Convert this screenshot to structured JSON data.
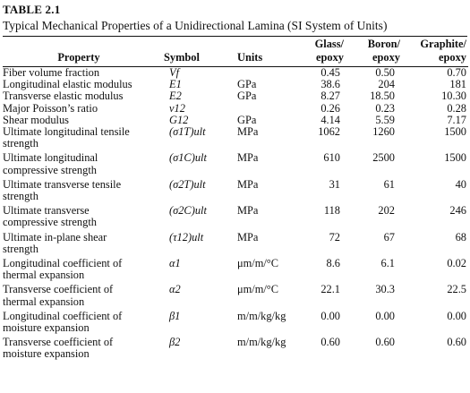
{
  "table": {
    "label": "TABLE 2.1",
    "caption": "Typical Mechanical Properties of a Unidirectional Lamina (SI System of Units)",
    "headers": {
      "property": "Property",
      "symbol": "Symbol",
      "units": "Units",
      "glass": "Glass/\nepoxy",
      "boron": "Boron/\nepoxy",
      "graphite": "Graphite/\nepoxy"
    },
    "rows": [
      {
        "property": "Fiber volume fraction",
        "symbol": "Vf",
        "units": "",
        "glass": "0.45",
        "boron": "0.50",
        "graphite": "0.70"
      },
      {
        "property": "Longitudinal elastic modulus",
        "symbol": "E1",
        "units": "GPa",
        "glass": "38.6",
        "boron": "204",
        "graphite": "181"
      },
      {
        "property": "Transverse elastic modulus",
        "symbol": "E2",
        "units": "GPa",
        "glass": "8.27",
        "boron": "18.50",
        "graphite": "10.30"
      },
      {
        "property": "Major Poisson’s ratio",
        "symbol": "ν12",
        "units": "",
        "glass": "0.26",
        "boron": "0.23",
        "graphite": "0.28"
      },
      {
        "property": "Shear modulus",
        "symbol": "G12",
        "units": "GPa",
        "glass": "4.14",
        "boron": "5.59",
        "graphite": "7.17"
      },
      {
        "property": "Ultimate longitudinal tensile\nstrength",
        "symbol": "(σ1T)ult",
        "units": "MPa",
        "glass": "1062",
        "boron": "1260",
        "graphite": "1500"
      },
      {
        "property": "Ultimate longitudinal\ncompressive strength",
        "symbol": "(σ1C)ult",
        "units": "MPa",
        "glass": "610",
        "boron": "2500",
        "graphite": "1500"
      },
      {
        "property": "Ultimate transverse tensile\nstrength",
        "symbol": "(σ2T)ult",
        "units": "MPa",
        "glass": "31",
        "boron": "61",
        "graphite": "40"
      },
      {
        "property": "Ultimate transverse\ncompressive strength",
        "symbol": "(σ2C)ult",
        "units": "MPa",
        "glass": "118",
        "boron": "202",
        "graphite": "246"
      },
      {
        "property": "Ultimate in-plane shear\nstrength",
        "symbol": "(τ12)ult",
        "units": "MPa",
        "glass": "72",
        "boron": "67",
        "graphite": "68"
      },
      {
        "property": "Longitudinal coefficient of\nthermal expansion",
        "symbol": "α1",
        "units": "μm/m/°C",
        "glass": "8.6",
        "boron": "6.1",
        "graphite": "0.02"
      },
      {
        "property": "Transverse coefficient of\nthermal expansion",
        "symbol": "α2",
        "units": "μm/m/°C",
        "glass": "22.1",
        "boron": "30.3",
        "graphite": "22.5"
      },
      {
        "property": "Longitudinal coefficient of\nmoisture expansion",
        "symbol": "β1",
        "units": "m/m/kg/kg",
        "glass": "0.00",
        "boron": "0.00",
        "graphite": "0.00"
      },
      {
        "property": "Transverse coefficient of\nmoisture expansion",
        "symbol": "β2",
        "units": "m/m/kg/kg",
        "glass": "0.60",
        "boron": "0.60",
        "graphite": "0.60"
      }
    ]
  }
}
